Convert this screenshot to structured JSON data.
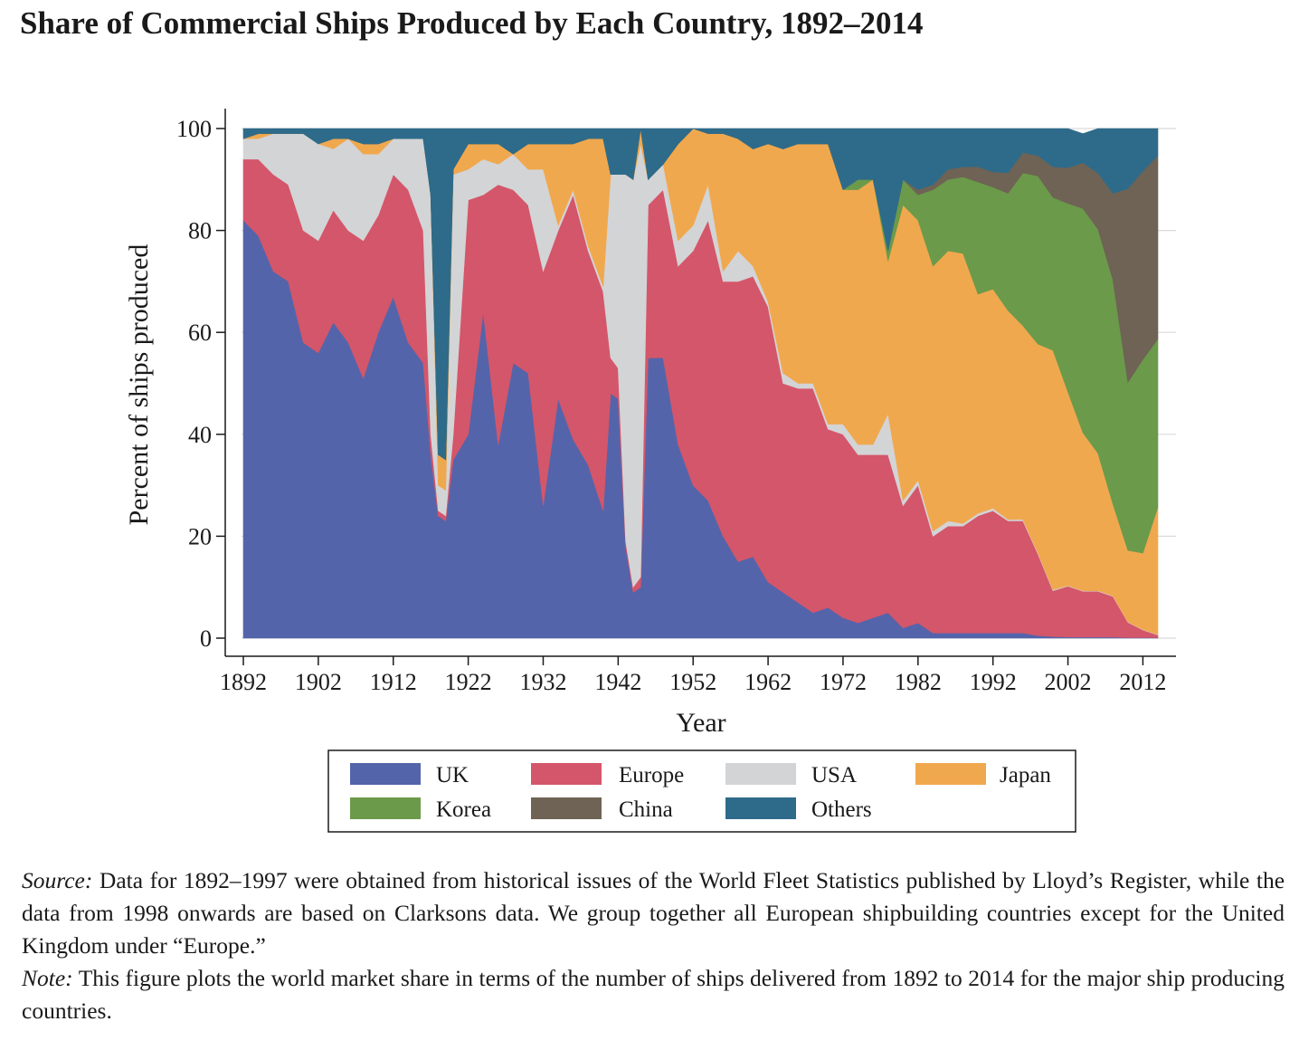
{
  "title": "Share of Commercial Ships Produced by Each Country, 1892–2014",
  "notes": {
    "source_label": "Source:",
    "source_text": "Data for 1892–1997 were obtained from historical issues of the World Fleet Statistics published by Lloyd’s Register, while the data from 1998 onwards are based on Clarksons data. We group together all European shipbuilding countries except for the United Kingdom under “Europe.”",
    "note_label": "Note:",
    "note_text": "This figure plots the world market share in terms of the number of ships delivered from 1892 to 2014 for the major ship producing countries."
  },
  "chart_data": {
    "type": "area",
    "stacked": true,
    "xlabel": "Year",
    "ylabel": "Percent of ships produced",
    "xlim": [
      1892,
      2014
    ],
    "ylim": [
      0,
      100
    ],
    "xticks": [
      1892,
      1902,
      1912,
      1922,
      1932,
      1942,
      1952,
      1962,
      1972,
      1982,
      1992,
      2002,
      2012
    ],
    "yticks": [
      0,
      20,
      40,
      60,
      80,
      100
    ],
    "grid": "horizontal",
    "legend": {
      "position": "bottom",
      "columns": 4
    },
    "x": [
      1892,
      1894,
      1896,
      1898,
      1900,
      1902,
      1904,
      1906,
      1908,
      1910,
      1912,
      1914,
      1916,
      1917,
      1918,
      1919,
      1920,
      1922,
      1924,
      1926,
      1928,
      1930,
      1932,
      1934,
      1936,
      1938,
      1940,
      1941,
      1942,
      1943,
      1944,
      1945,
      1946,
      1948,
      1950,
      1952,
      1954,
      1956,
      1958,
      1960,
      1962,
      1964,
      1966,
      1968,
      1970,
      1972,
      1974,
      1976,
      1978,
      1980,
      1982,
      1984,
      1986,
      1988,
      1990,
      1992,
      1994,
      1996,
      1998,
      2000,
      2002,
      2004,
      2006,
      2008,
      2010,
      2012,
      2014
    ],
    "series": [
      {
        "name": "UK",
        "color": "#5464aa",
        "values": [
          82,
          79,
          72,
          70,
          58,
          56,
          62,
          58,
          51,
          60,
          67,
          58,
          54,
          36,
          24,
          23,
          35,
          40,
          64,
          38,
          54,
          52,
          26,
          47,
          39,
          34,
          25,
          48,
          47,
          18,
          9,
          10,
          55,
          55,
          38,
          30,
          27,
          20,
          15,
          16,
          11,
          9,
          7,
          5,
          6,
          4,
          3,
          4,
          5,
          2,
          3,
          1,
          1,
          1,
          1,
          1,
          1,
          1,
          0.5,
          0.3,
          0.2,
          0.2,
          0.2,
          0.2,
          0.1,
          0.1,
          0.1
        ]
      },
      {
        "name": "Europe",
        "color": "#d4566a",
        "values": [
          12,
          15,
          19,
          19,
          22,
          22,
          22,
          22,
          27,
          23,
          24,
          30,
          26,
          4,
          1,
          1,
          5,
          46,
          23,
          51,
          34,
          33,
          46,
          33,
          48,
          42,
          43,
          7,
          6,
          1,
          1,
          2,
          30,
          33,
          35,
          46,
          55,
          50,
          55,
          55,
          54,
          41,
          42,
          44,
          35,
          36,
          33,
          32,
          31,
          24,
          27,
          19,
          21,
          21,
          23,
          24,
          22,
          22,
          16,
          9,
          10,
          9,
          9,
          8,
          3,
          1.5,
          0.5
        ]
      },
      {
        "name": "USA",
        "color": "#d3d4d6",
        "values": [
          4,
          4,
          8,
          10,
          19,
          19,
          12,
          18,
          17,
          12,
          7,
          10,
          18,
          47,
          5,
          5,
          51,
          6,
          7,
          4,
          7,
          7,
          20,
          1,
          1,
          1,
          1,
          36,
          38,
          72,
          80,
          85,
          5,
          5,
          5,
          5,
          7,
          2,
          6,
          2,
          1,
          2,
          1,
          1,
          1,
          2,
          2,
          2,
          8,
          1,
          1,
          1,
          1,
          0.5,
          0.5,
          0.5,
          0.3,
          0.3,
          0.2,
          0.2,
          0.1,
          0.1,
          0.1,
          0.1,
          0.1,
          0.1,
          0.1
        ]
      },
      {
        "name": "Japan",
        "color": "#f0a84e",
        "values": [
          0,
          1,
          0,
          0,
          0,
          0,
          2,
          0,
          2,
          2,
          0,
          0,
          0,
          0,
          6,
          6,
          1,
          5,
          3,
          4,
          0,
          5,
          5,
          16,
          9,
          21,
          29,
          0,
          0,
          0,
          0,
          3,
          0,
          0,
          19,
          19,
          10,
          27,
          22,
          23,
          31,
          44,
          47,
          47,
          55,
          46,
          50,
          52,
          30,
          58,
          51,
          52,
          53,
          53,
          43,
          43,
          41,
          38,
          41,
          47,
          38,
          31,
          27,
          18,
          14,
          15,
          25
        ]
      },
      {
        "name": "Korea",
        "color": "#6b9a4a",
        "values": [
          0,
          0,
          0,
          0,
          0,
          0,
          0,
          0,
          0,
          0,
          0,
          0,
          0,
          0,
          0,
          0,
          0,
          0,
          0,
          0,
          0,
          0,
          0,
          0,
          0,
          0,
          0,
          0,
          0,
          0,
          0,
          0,
          0,
          0,
          0,
          0,
          0,
          0,
          0,
          0,
          0,
          0,
          0,
          0,
          0,
          0,
          2,
          0,
          2,
          5,
          5,
          15,
          14,
          15,
          22,
          20,
          23,
          30,
          33,
          30,
          37,
          44,
          44,
          44,
          33,
          38,
          33
        ]
      },
      {
        "name": "China",
        "color": "#6e6354",
        "values": [
          0,
          0,
          0,
          0,
          0,
          0,
          0,
          0,
          0,
          0,
          0,
          0,
          0,
          0,
          0,
          0,
          0,
          0,
          0,
          0,
          0,
          0,
          0,
          0,
          0,
          0,
          0,
          0,
          0,
          0,
          0,
          0,
          0,
          0,
          0,
          0,
          0,
          0,
          0,
          0,
          0,
          0,
          0,
          0,
          0,
          0,
          0,
          0,
          0,
          0,
          1,
          1,
          2,
          2,
          3,
          3,
          4,
          4,
          4,
          6,
          7,
          9,
          11,
          17,
          38,
          37,
          36
        ]
      },
      {
        "name": "Others",
        "color": "#2e6b8a",
        "values": [
          2,
          1,
          1,
          1,
          1,
          3,
          2,
          2,
          3,
          3,
          2,
          2,
          2,
          13,
          64,
          65,
          8,
          3,
          3,
          3,
          5,
          3,
          3,
          3,
          3,
          2,
          2,
          9,
          9,
          9,
          10,
          0,
          10,
          7,
          3,
          0,
          1,
          1,
          2,
          4,
          3,
          4,
          3,
          3,
          3,
          12,
          10,
          10,
          24,
          10,
          12,
          11,
          8,
          7.5,
          7.5,
          8.5,
          8.7,
          4.7,
          5.3,
          7.5,
          7.7,
          5.7,
          8.7,
          12.7,
          11.9,
          8.4,
          5.4
        ]
      }
    ]
  }
}
